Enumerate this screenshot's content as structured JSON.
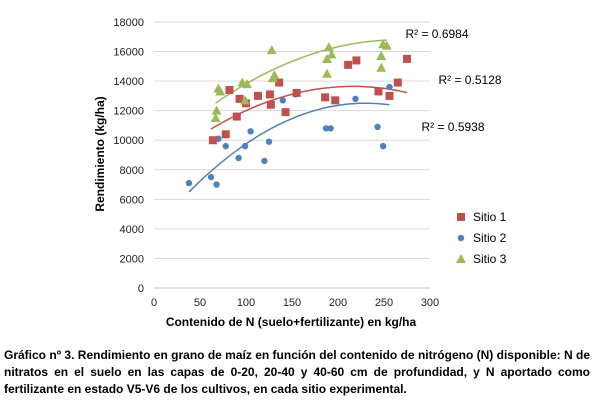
{
  "chart_data": {
    "type": "scatter",
    "title": "",
    "xlabel": "Contenido de N (suelo+fertilizante)  en kg/ha",
    "ylabel": "Rendimiento (kg/ha)",
    "xlim": [
      0,
      300
    ],
    "ylim": [
      0,
      18000
    ],
    "xticks": [
      0,
      50,
      100,
      150,
      200,
      250,
      300
    ],
    "yticks": [
      0,
      2000,
      4000,
      6000,
      8000,
      10000,
      12000,
      14000,
      16000,
      18000
    ],
    "grid": "horizontal",
    "legend_position": "right",
    "series": [
      {
        "name": "Sitio 1",
        "marker": "square",
        "color": "#c0504d",
        "points": [
          [
            64,
            10000
          ],
          [
            78,
            10400
          ],
          [
            82,
            13400
          ],
          [
            90,
            11600
          ],
          [
            93,
            12800
          ],
          [
            100,
            12500
          ],
          [
            113,
            13000
          ],
          [
            126,
            13100
          ],
          [
            127,
            12400
          ],
          [
            136,
            13900
          ],
          [
            143,
            11900
          ],
          [
            155,
            13200
          ],
          [
            186,
            12900
          ],
          [
            197,
            12700
          ],
          [
            211,
            15100
          ],
          [
            220,
            15400
          ],
          [
            244,
            13300
          ],
          [
            256,
            13000
          ],
          [
            265,
            13900
          ],
          [
            275,
            15500
          ]
        ],
        "trend": {
          "label": "R² = 0.5128",
          "x": [
            62,
            275
          ],
          "coef": [
            7966.4,
            52.48,
            -0.1213
          ]
        }
      },
      {
        "name": "Sitio 2",
        "marker": "circle",
        "color": "#4f81bd",
        "points": [
          [
            38,
            7100
          ],
          [
            62,
            7500
          ],
          [
            68,
            7000
          ],
          [
            70,
            10100
          ],
          [
            78,
            9600
          ],
          [
            92,
            8800
          ],
          [
            99,
            9600
          ],
          [
            105,
            10600
          ],
          [
            120,
            8600
          ],
          [
            125,
            9900
          ],
          [
            128,
            12400
          ],
          [
            140,
            12700
          ],
          [
            154,
            13100
          ],
          [
            187,
            10800
          ],
          [
            192,
            10800
          ],
          [
            219,
            12800
          ],
          [
            243,
            10900
          ],
          [
            249,
            9600
          ],
          [
            256,
            13600
          ]
        ],
        "trend": {
          "label": "R² = 0.5938",
          "x": [
            38,
            256
          ],
          "coef": [
            3879.1,
            75.04,
            -0.1632
          ]
        }
      },
      {
        "name": "Sitio 3",
        "marker": "triangle",
        "color": "#9bbb59",
        "points": [
          [
            67,
            11500
          ],
          [
            68,
            12000
          ],
          [
            70,
            13500
          ],
          [
            72,
            13300
          ],
          [
            96,
            13900
          ],
          [
            99,
            12700
          ],
          [
            101,
            13800
          ],
          [
            128,
            16100
          ],
          [
            129,
            14200
          ],
          [
            131,
            14400
          ],
          [
            188,
            14500
          ],
          [
            188,
            15500
          ],
          [
            190,
            16300
          ],
          [
            193,
            15800
          ],
          [
            247,
            14900
          ],
          [
            247,
            15700
          ],
          [
            249,
            16500
          ],
          [
            253,
            16400
          ]
        ],
        "trend": {
          "label": "R² = 0.6984",
          "x": [
            67,
            253
          ],
          "coef": [
            9141.0,
            57.52,
            -0.1081
          ]
        }
      }
    ]
  },
  "caption": "Gráfico nº 3. Rendimiento en grano de maíz en función del contenido de nitrógeno (N) disponible: N de nitratos en el suelo en las capas de 0-20, 20-40 y 40-60 cm de profundidad, y N aportado como fertilizante en estado V5-V6 de los cultivos, en cada sitio experimental."
}
